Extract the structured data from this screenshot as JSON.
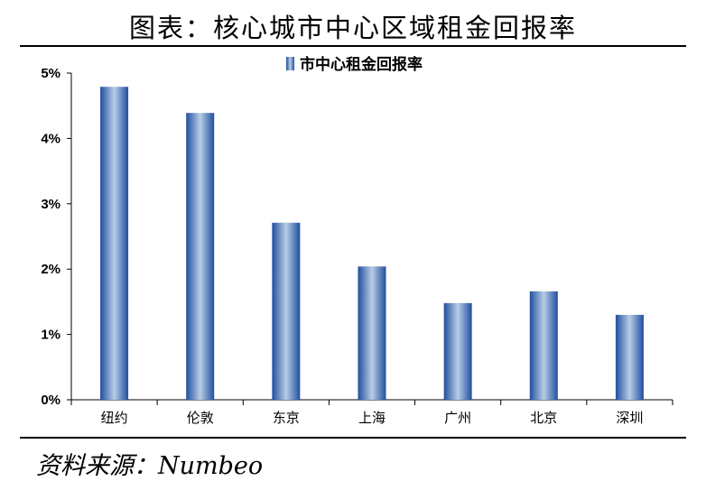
{
  "header": {
    "title": "图表：核心城市中心区域租金回报率"
  },
  "footer": {
    "source": "资料来源：Numbeo"
  },
  "chart_data": {
    "type": "bar",
    "title": "",
    "xlabel": "",
    "ylabel": "",
    "categories": [
      "纽约",
      "伦敦",
      "东京",
      "上海",
      "广州",
      "北京",
      "深圳"
    ],
    "series": [
      {
        "name": "市中心租金回报率",
        "values": [
          4.79,
          4.39,
          2.71,
          2.04,
          1.48,
          1.66,
          1.3
        ]
      }
    ],
    "ylim": [
      0,
      5
    ],
    "yticks": [
      0,
      1,
      2,
      3,
      4,
      5
    ],
    "ytick_labels": [
      "0%",
      "1%",
      "2%",
      "3%",
      "4%",
      "5%"
    ],
    "legend_position": "top",
    "grid": false,
    "bar_color": "#3a6fbf"
  }
}
